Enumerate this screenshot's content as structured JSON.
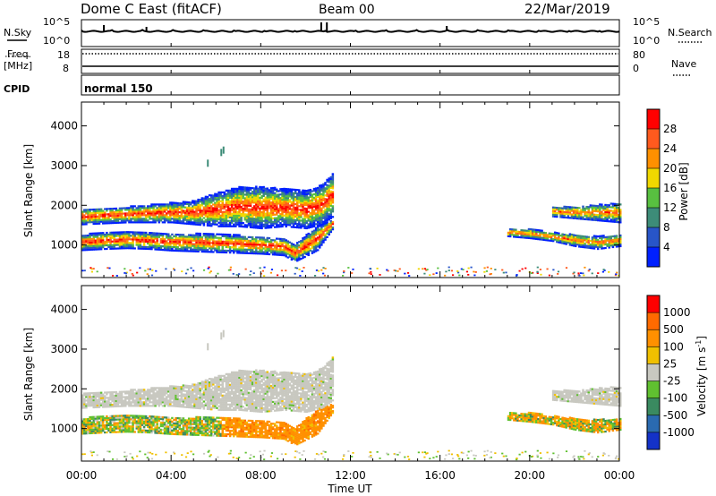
{
  "header": {
    "station": "Dome C East (fitACF)",
    "beam": "Beam 00",
    "date": "22/Mar/2019"
  },
  "status_panels": {
    "nsky_label": "N.Sky",
    "nsearch_label": "N.Search",
    "freq_label": "Freq.",
    "freq_unit": "[MHz]",
    "nave_label": "Nave",
    "cpid_label": "CPID",
    "cpid_value": "normal 150",
    "noise_tick_top": "10^5",
    "noise_tick_bottom": "10^0",
    "noise_right_top": "10^5",
    "noise_right_bottom": "10^0",
    "freq_tick_top": "18",
    "freq_tick_bottom": "8",
    "nave_tick_top": "80",
    "nave_tick_bottom": "0"
  },
  "chart_data": [
    {
      "type": "heatmap",
      "parameter": "power",
      "ylabel": "Slant Range [km]",
      "xlabel": "Time UT",
      "xlim_hours": [
        0,
        24
      ],
      "ylim": [
        180,
        4600
      ],
      "x_ticks": [
        "00:00",
        "04:00",
        "08:00",
        "12:00",
        "16:00",
        "20:00",
        "00:00"
      ],
      "y_ticks": [
        1000,
        2000,
        3000,
        4000
      ],
      "colorbar": {
        "label": "Power [dB]",
        "ticks": [
          "4",
          "8",
          "12",
          "16",
          "20",
          "24",
          "28"
        ],
        "colors": [
          "#0020ff",
          "#2855c8",
          "#3d8c78",
          "#58c040",
          "#f0d800",
          "#ff9000",
          "#ff5a1e",
          "#ff0000"
        ]
      },
      "echo_bands": [
        {
          "name": "lower",
          "t": [
            0,
            1,
            2,
            3,
            4,
            5,
            6,
            7,
            8,
            9,
            9.5,
            10,
            10.5,
            11.2
          ],
          "lo": [
            850,
            880,
            900,
            880,
            840,
            820,
            800,
            780,
            760,
            720,
            560,
            700,
            850,
            1400
          ],
          "hi": [
            1250,
            1300,
            1320,
            1300,
            1280,
            1270,
            1260,
            1230,
            1200,
            1150,
            1000,
            1250,
            1450,
            1650
          ]
        },
        {
          "name": "upper",
          "t": [
            0,
            2,
            4,
            5,
            6,
            7,
            8,
            9,
            10,
            10.7,
            11.2
          ],
          "lo": [
            1500,
            1550,
            1550,
            1500,
            1450,
            1450,
            1400,
            1450,
            1400,
            1500,
            1700
          ],
          "hi": [
            1900,
            1950,
            2050,
            2100,
            2300,
            2450,
            2450,
            2400,
            2350,
            2500,
            2800
          ]
        },
        {
          "name": "late-lower",
          "t": [
            19,
            20,
            21,
            22,
            23,
            24
          ],
          "lo": [
            1200,
            1150,
            1080,
            950,
            880,
            950
          ],
          "hi": [
            1400,
            1380,
            1300,
            1250,
            1200,
            1250
          ]
        },
        {
          "name": "late-upper",
          "t": [
            21,
            22,
            23,
            24
          ],
          "lo": [
            1700,
            1650,
            1600,
            1550
          ],
          "hi": [
            1950,
            1950,
            2000,
            2050
          ]
        }
      ]
    },
    {
      "type": "heatmap",
      "parameter": "velocity",
      "ylabel": "Slant Range [km]",
      "xlabel": "Time UT",
      "xlim_hours": [
        0,
        24
      ],
      "ylim": [
        180,
        4600
      ],
      "x_ticks": [
        "00:00",
        "04:00",
        "08:00",
        "12:00",
        "16:00",
        "20:00",
        "00:00"
      ],
      "y_ticks": [
        1000,
        2000,
        3000,
        4000
      ],
      "colorbar": {
        "label": "Velocity [m s^-1]",
        "ticks": [
          "1000",
          "500",
          "100",
          "25",
          "-25",
          "-100",
          "-500",
          "-1000"
        ],
        "colors": [
          "#1432c8",
          "#2a6ab0",
          "#3a8a60",
          "#60c030",
          "#c8c8c0",
          "#f0c000",
          "#ff9000",
          "#ff6a00",
          "#ff0000"
        ]
      }
    }
  ]
}
